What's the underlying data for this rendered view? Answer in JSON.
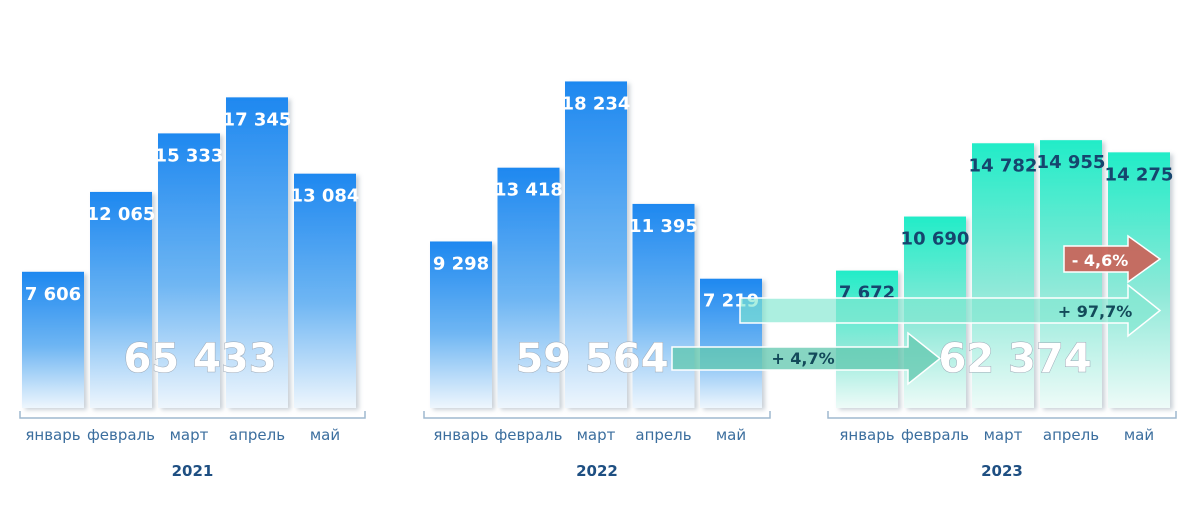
{
  "chart_data": [
    {
      "type": "bar",
      "year": "2021",
      "categories": [
        "январь",
        "февраль",
        "март",
        "апрель",
        "май"
      ],
      "values": [
        7606,
        12065,
        15333,
        17345,
        13084
      ],
      "value_labels": [
        "7 606",
        "12 065",
        "15 333",
        "17 345",
        "13 084"
      ],
      "total": "65 433",
      "bar_color": "#1e88f0",
      "label_color": "#ffffff"
    },
    {
      "type": "bar",
      "year": "2022",
      "categories": [
        "январь",
        "февраль",
        "март",
        "апрель",
        "май"
      ],
      "values": [
        9298,
        13418,
        18234,
        11395,
        7219
      ],
      "value_labels": [
        "9 298",
        "13 418",
        "18 234",
        "11 395",
        "7 219"
      ],
      "total": "59 564",
      "bar_color": "#1e88f0",
      "label_color": "#ffffff"
    },
    {
      "type": "bar",
      "year": "2023",
      "categories": [
        "январь",
        "февраль",
        "март",
        "апрель",
        "май"
      ],
      "values": [
        7672,
        10690,
        14782,
        14955,
        14275
      ],
      "value_labels": [
        "7 672",
        "10 690",
        "14 782",
        "14 955",
        "14 275"
      ],
      "total": "62 374",
      "bar_color": "#22ecc8",
      "label_color": "#16456e"
    }
  ],
  "annotations": [
    {
      "text": "+ 4,7%",
      "color": "#4ab59c"
    },
    {
      "text": "+ 97,7%",
      "color": "#4ab59c"
    },
    {
      "text": "- 4,6%",
      "color": "#c2635a"
    }
  ]
}
